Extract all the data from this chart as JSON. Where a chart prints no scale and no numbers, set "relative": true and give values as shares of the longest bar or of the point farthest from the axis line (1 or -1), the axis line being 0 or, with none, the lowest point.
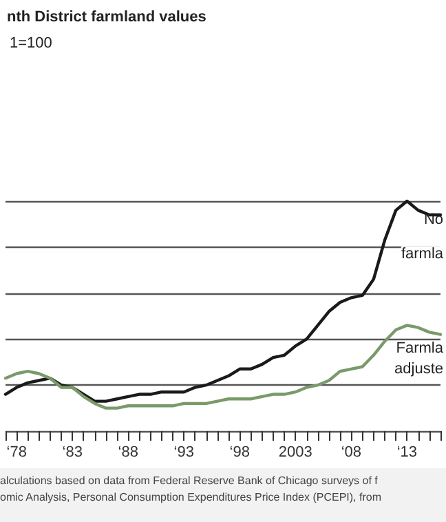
{
  "chart_data": {
    "type": "line",
    "title": "nth District farmland values",
    "subtitle": "1=100",
    "relative": true,
    "grid": "y",
    "marker": "none",
    "line_style": "solid",
    "categories": [
      null,
      "‘78",
      null,
      null,
      null,
      null,
      "‘83",
      null,
      null,
      null,
      null,
      "‘88",
      null,
      null,
      null,
      null,
      "‘93",
      null,
      null,
      null,
      null,
      "‘98",
      null,
      null,
      null,
      null,
      "2003",
      null,
      null,
      null,
      null,
      "‘08",
      null,
      null,
      null,
      null,
      "‘13",
      null,
      null,
      null
    ],
    "series": [
      {
        "color": "#1a1a1a",
        "values": [
          0.16,
          0.19,
          0.21,
          0.22,
          0.23,
          0.2,
          0.19,
          0.16,
          0.13,
          0.13,
          0.14,
          0.15,
          0.16,
          0.16,
          0.17,
          0.17,
          0.17,
          0.19,
          0.2,
          0.22,
          0.24,
          0.27,
          0.27,
          0.29,
          0.32,
          0.33,
          0.37,
          0.4,
          0.46,
          0.52,
          0.56,
          0.58,
          0.59,
          0.66,
          0.83,
          0.96,
          1,
          0.96,
          0.94,
          0.94
        ]
      },
      {
        "color": "#7a9a6a",
        "values": [
          0.23,
          0.25,
          0.26,
          0.25,
          0.23,
          0.19,
          0.19,
          0.15,
          0.12,
          0.1,
          0.1,
          0.11,
          0.11,
          0.11,
          0.11,
          0.11,
          0.12,
          0.12,
          0.12,
          0.13,
          0.14,
          0.14,
          0.14,
          0.15,
          0.16,
          0.16,
          0.17,
          0.19,
          0.2,
          0.22,
          0.26,
          0.27,
          0.28,
          0.33,
          0.39,
          0.44,
          0.46,
          0.45,
          0.43,
          0.42
        ]
      }
    ],
    "annotations": [
      {
        "text": "No",
        "y": 0.92
      },
      {
        "text": "farmla",
        "y": 0.77
      },
      {
        "text": "Farmla",
        "y": 0.36
      },
      {
        "text": "adjuste",
        "y": 0.27
      },
      "alculations based on data from Federal Reserve Bank of Chicago surveys of f",
      "omic Analysis, Personal Consumption Expenditures Price Index (PCEPI), from"
    ]
  }
}
